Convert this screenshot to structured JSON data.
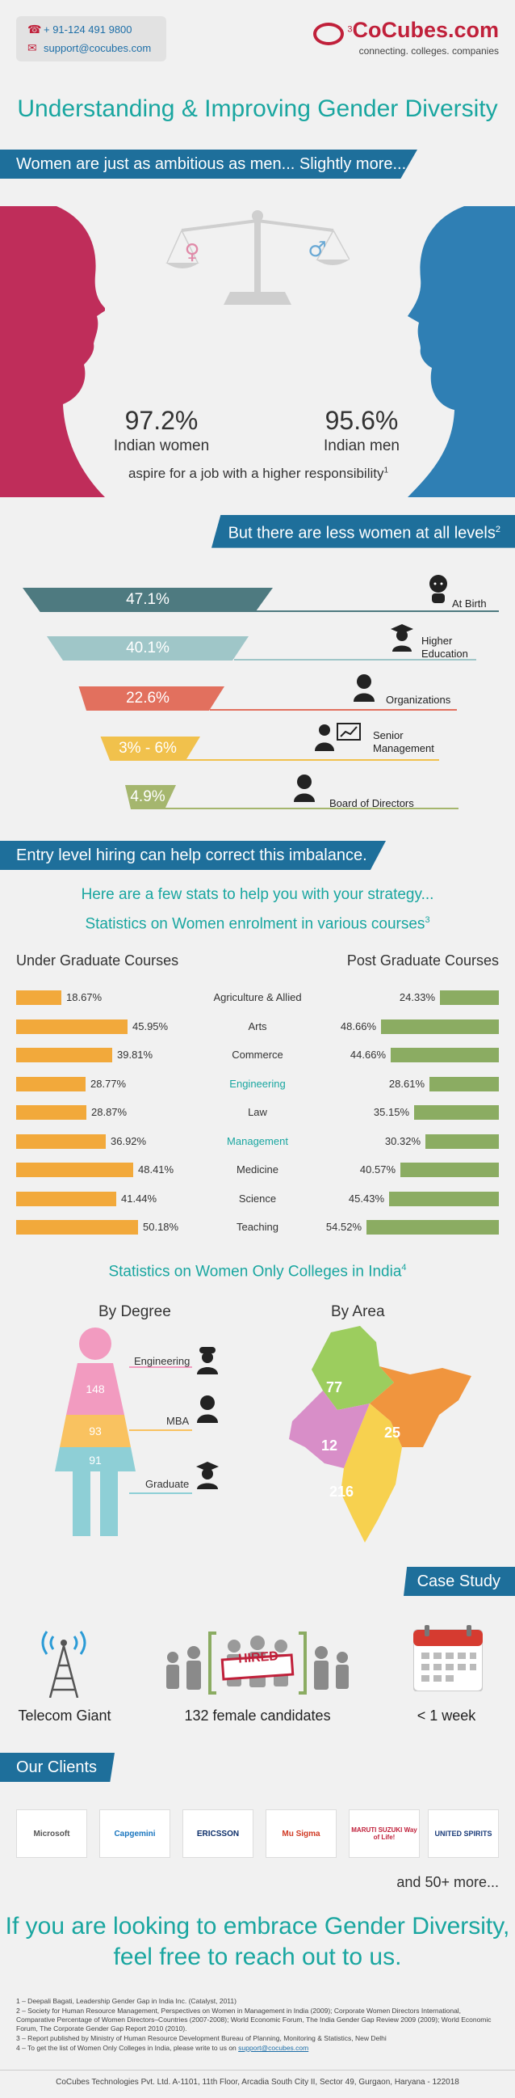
{
  "contact": {
    "phone": "+ 91-124 491 9800",
    "email": "support@cocubes.com"
  },
  "logo": {
    "name": "CoCubes.com",
    "tagline": "connecting. colleges. companies",
    "superscript": "3"
  },
  "title": "Understanding & Improving Gender Diversity",
  "banners": {
    "ambitious": "Women are just as ambitious as men... Slightly more...",
    "less_women": "But there are less women at all levels",
    "less_women_sup": "2",
    "entry_level": "Entry level hiring can help correct this imbalance.",
    "case_study": "Case Study",
    "clients": "Our Clients"
  },
  "ambition": {
    "women_pct": "97.2%",
    "women_label": "Indian women",
    "men_pct": "95.6%",
    "men_label": "Indian men",
    "caption": "aspire for a job with a higher responsibility",
    "caption_sup": "1"
  },
  "funnel": [
    {
      "value": "47.1%",
      "label": "At Birth",
      "color": "#4e7a80"
    },
    {
      "value": "40.1%",
      "label": "Higher Education",
      "color": "#9fc6c8"
    },
    {
      "value": "22.6%",
      "label": "Organizations",
      "color": "#e2705e"
    },
    {
      "value": "3% - 6%",
      "label": "Senior Management",
      "color": "#f1c14c"
    },
    {
      "value": "4.9%",
      "label": "Board of Directors",
      "color": "#a5b66e"
    }
  ],
  "strategy": {
    "intro": "Here are a few stats to help you with your strategy...",
    "enrolment_title": "Statistics on Women enrolment in various courses",
    "enrolment_sup": "3",
    "ug_heading": "Under Graduate Courses",
    "pg_heading": "Post Graduate Courses"
  },
  "chart_data": {
    "type": "bar",
    "categories": [
      "Agriculture & Allied",
      "Arts",
      "Commerce",
      "Engineering",
      "Law",
      "Management",
      "Medicine",
      "Science",
      "Teaching"
    ],
    "series": [
      {
        "name": "Under Graduate Courses",
        "values": [
          18.67,
          45.95,
          39.81,
          28.77,
          28.87,
          36.92,
          48.41,
          41.44,
          50.18
        ],
        "labels": [
          "18.67%",
          "45.95%",
          "39.81%",
          "28.77%",
          "28.87%",
          "36.92%",
          "48.41%",
          "41.44%",
          "50.18%"
        ],
        "color": "#f2a93b"
      },
      {
        "name": "Post Graduate Courses",
        "values": [
          24.33,
          48.66,
          44.66,
          28.61,
          35.15,
          30.32,
          40.57,
          45.43,
          54.52
        ],
        "labels": [
          "24.33%",
          "48.66%",
          "44.66%",
          "28.61%",
          "35.15%",
          "30.32%",
          "40.57%",
          "45.43%",
          "54.52%"
        ],
        "color": "#8bac62"
      }
    ],
    "highlighted_categories": [
      "Engineering",
      "Management"
    ]
  },
  "colleges": {
    "title": "Statistics on Women Only Colleges in India",
    "title_sup": "4",
    "by_degree": "By Degree",
    "by_area": "By Area",
    "degree": [
      {
        "label": "Engineering",
        "value": "148",
        "color": "#f29bc0"
      },
      {
        "label": "MBA",
        "value": "93",
        "color": "#f9c260"
      },
      {
        "label": "Graduate",
        "value": "91",
        "color": "#8ecfd6"
      }
    ],
    "area": [
      {
        "value": "77",
        "color": "#9ccd5e"
      },
      {
        "value": "25",
        "color": "#f0953e"
      },
      {
        "value": "12",
        "color": "#d88ec8"
      },
      {
        "value": "216",
        "color": "#f7d14f"
      }
    ]
  },
  "case_study": {
    "items": [
      {
        "label": "Telecom Giant"
      },
      {
        "label": "132 female candidates",
        "stamp": "HIRED"
      },
      {
        "label": "< 1 week"
      }
    ]
  },
  "clients": {
    "logos": [
      "Microsoft",
      "Capgemini",
      "ERICSSON",
      "Mu Sigma",
      "MARUTI SUZUKI Way of Life!",
      "UNITED SPIRITS"
    ],
    "more": "and 50+ more..."
  },
  "cta": {
    "line1": "If you are looking to embrace Gender Diversity,",
    "line2": "feel free to reach out to us."
  },
  "footnotes": [
    "1 – Deepali Bagati, Leadership Gender Gap in India Inc. (Catalyst, 2011)",
    "2 – Society for Human Resource Management, Perspectives on Women in Management in India (2009); Corporate Women Directors International, Comparative Percentage of Women Directors–Countries (2007-2008); World Economic Forum, The India Gender Gap Review 2009 (2009); World Economic Forum, The Corporate Gender Gap Report 2010 (2010).",
    "3 – Report published by Ministry of Human Resource Development Bureau of Planning, Monitoring & Statistics, New Delhi",
    "4 – To get the list of Women Only Colleges in India, please write to us on"
  ],
  "footnote_link": "support@cocubes.com",
  "footer": "CoCubes Technologies Pvt. Ltd. A-1101, 11th Floor, Arcadia South City II, Sector 49, Gurgaon, Haryana - 122018"
}
